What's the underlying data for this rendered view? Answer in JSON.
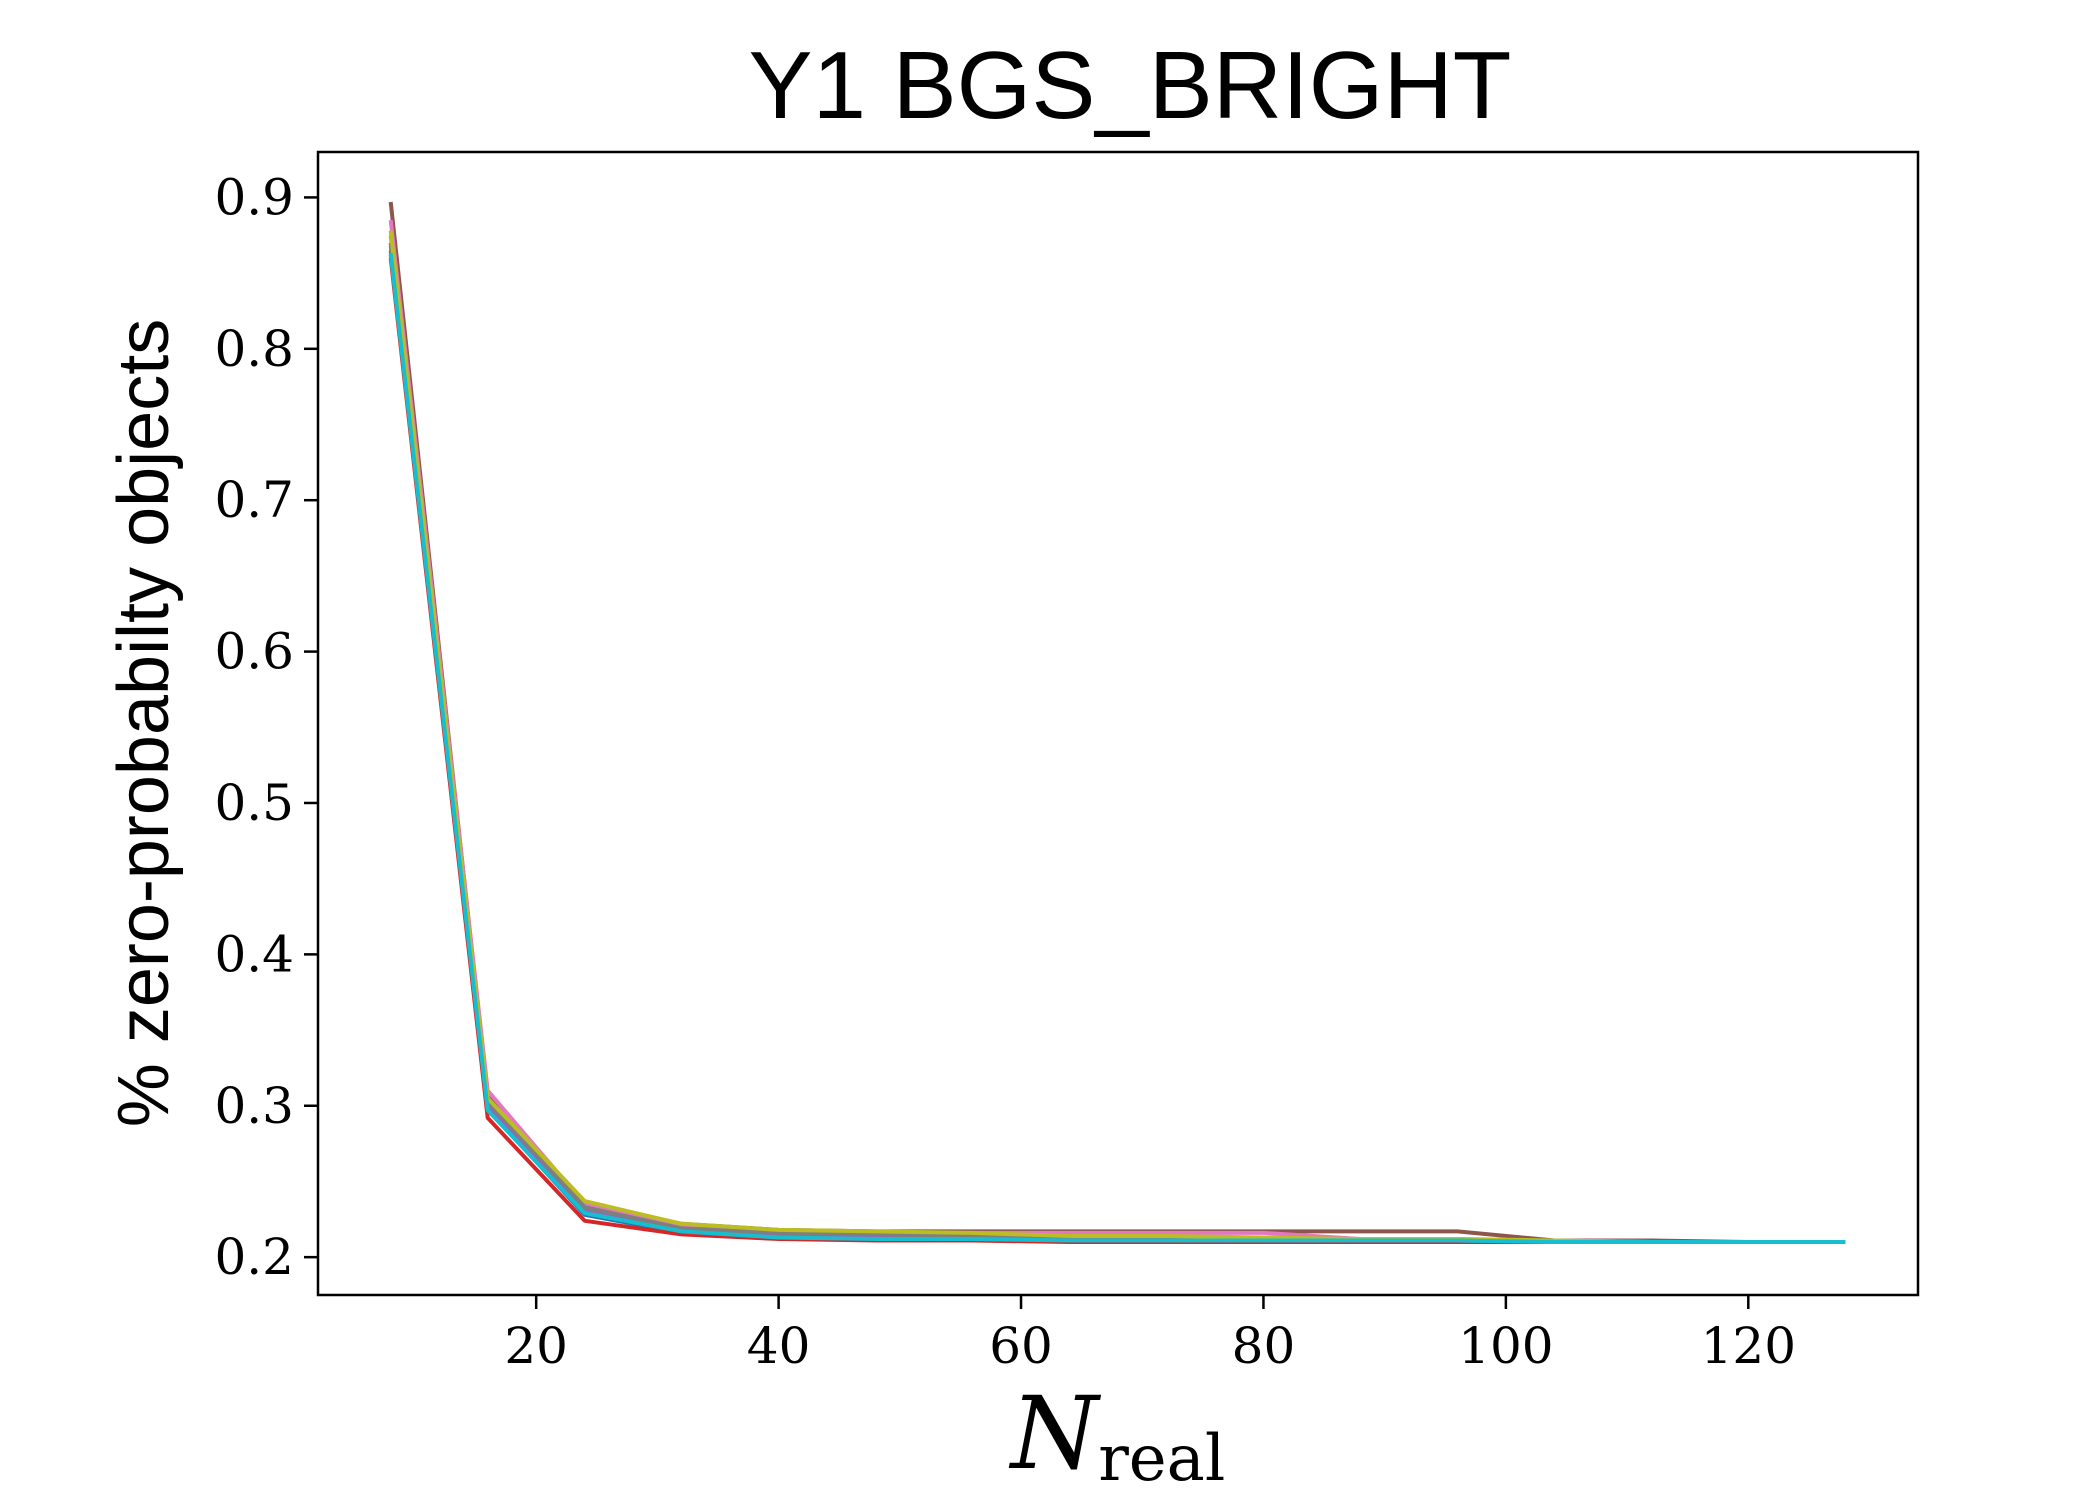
{
  "chart_data": {
    "type": "line",
    "title": "Y1 BGS_BRIGHT",
    "xlabel": "N",
    "xlabel_subscript": "real",
    "ylabel": "% zero-probabilty objects",
    "xlim": [
      2,
      134
    ],
    "ylim": [
      0.175,
      0.93
    ],
    "xticks": [
      20,
      40,
      60,
      80,
      100,
      120
    ],
    "yticks": [
      0.2,
      0.3,
      0.4,
      0.5,
      0.6,
      0.7,
      0.8,
      0.9
    ],
    "grid": false,
    "legend": "none",
    "x": [
      8,
      16,
      24,
      32,
      40,
      48,
      56,
      64,
      72,
      80,
      88,
      96,
      104,
      112,
      120,
      128
    ],
    "series": [
      {
        "color": "#1f77b4",
        "values": [
          0.862,
          0.298,
          0.228,
          0.216,
          0.213,
          0.212,
          0.211,
          0.211,
          0.211,
          0.211,
          0.211,
          0.211,
          0.21,
          0.21,
          0.21,
          0.21
        ]
      },
      {
        "color": "#ff7f0e",
        "values": [
          0.875,
          0.302,
          0.232,
          0.219,
          0.215,
          0.214,
          0.213,
          0.212,
          0.212,
          0.212,
          0.212,
          0.211,
          0.21,
          0.21,
          0.21,
          0.21
        ]
      },
      {
        "color": "#2ca02c",
        "values": [
          0.865,
          0.3,
          0.23,
          0.217,
          0.214,
          0.213,
          0.212,
          0.212,
          0.211,
          0.211,
          0.211,
          0.211,
          0.21,
          0.21,
          0.21,
          0.21
        ]
      },
      {
        "color": "#d62728",
        "values": [
          0.86,
          0.292,
          0.224,
          0.215,
          0.212,
          0.211,
          0.211,
          0.21,
          0.21,
          0.21,
          0.21,
          0.21,
          0.21,
          0.21,
          0.21,
          0.21
        ]
      },
      {
        "color": "#9467bd",
        "values": [
          0.868,
          0.301,
          0.231,
          0.218,
          0.215,
          0.214,
          0.213,
          0.213,
          0.213,
          0.212,
          0.212,
          0.212,
          0.21,
          0.21,
          0.21,
          0.21
        ]
      },
      {
        "color": "#8c564b",
        "values": [
          0.897,
          0.306,
          0.236,
          0.222,
          0.218,
          0.217,
          0.217,
          0.217,
          0.217,
          0.217,
          0.217,
          0.217,
          0.211,
          0.211,
          0.21,
          0.21
        ]
      },
      {
        "color": "#e377c2",
        "values": [
          0.885,
          0.31,
          0.235,
          0.221,
          0.217,
          0.216,
          0.216,
          0.216,
          0.216,
          0.216,
          0.212,
          0.211,
          0.211,
          0.21,
          0.21,
          0.21
        ]
      },
      {
        "color": "#7f7f7f",
        "values": [
          0.87,
          0.303,
          0.233,
          0.219,
          0.216,
          0.215,
          0.214,
          0.213,
          0.213,
          0.212,
          0.212,
          0.211,
          0.21,
          0.21,
          0.21,
          0.21
        ]
      },
      {
        "color": "#bcbd22",
        "values": [
          0.878,
          0.305,
          0.237,
          0.222,
          0.218,
          0.217,
          0.216,
          0.214,
          0.214,
          0.213,
          0.212,
          0.212,
          0.211,
          0.21,
          0.21,
          0.21
        ]
      },
      {
        "color": "#17becf",
        "values": [
          0.863,
          0.297,
          0.229,
          0.217,
          0.213,
          0.212,
          0.212,
          0.211,
          0.211,
          0.211,
          0.211,
          0.211,
          0.21,
          0.21,
          0.21,
          0.21
        ]
      }
    ]
  }
}
